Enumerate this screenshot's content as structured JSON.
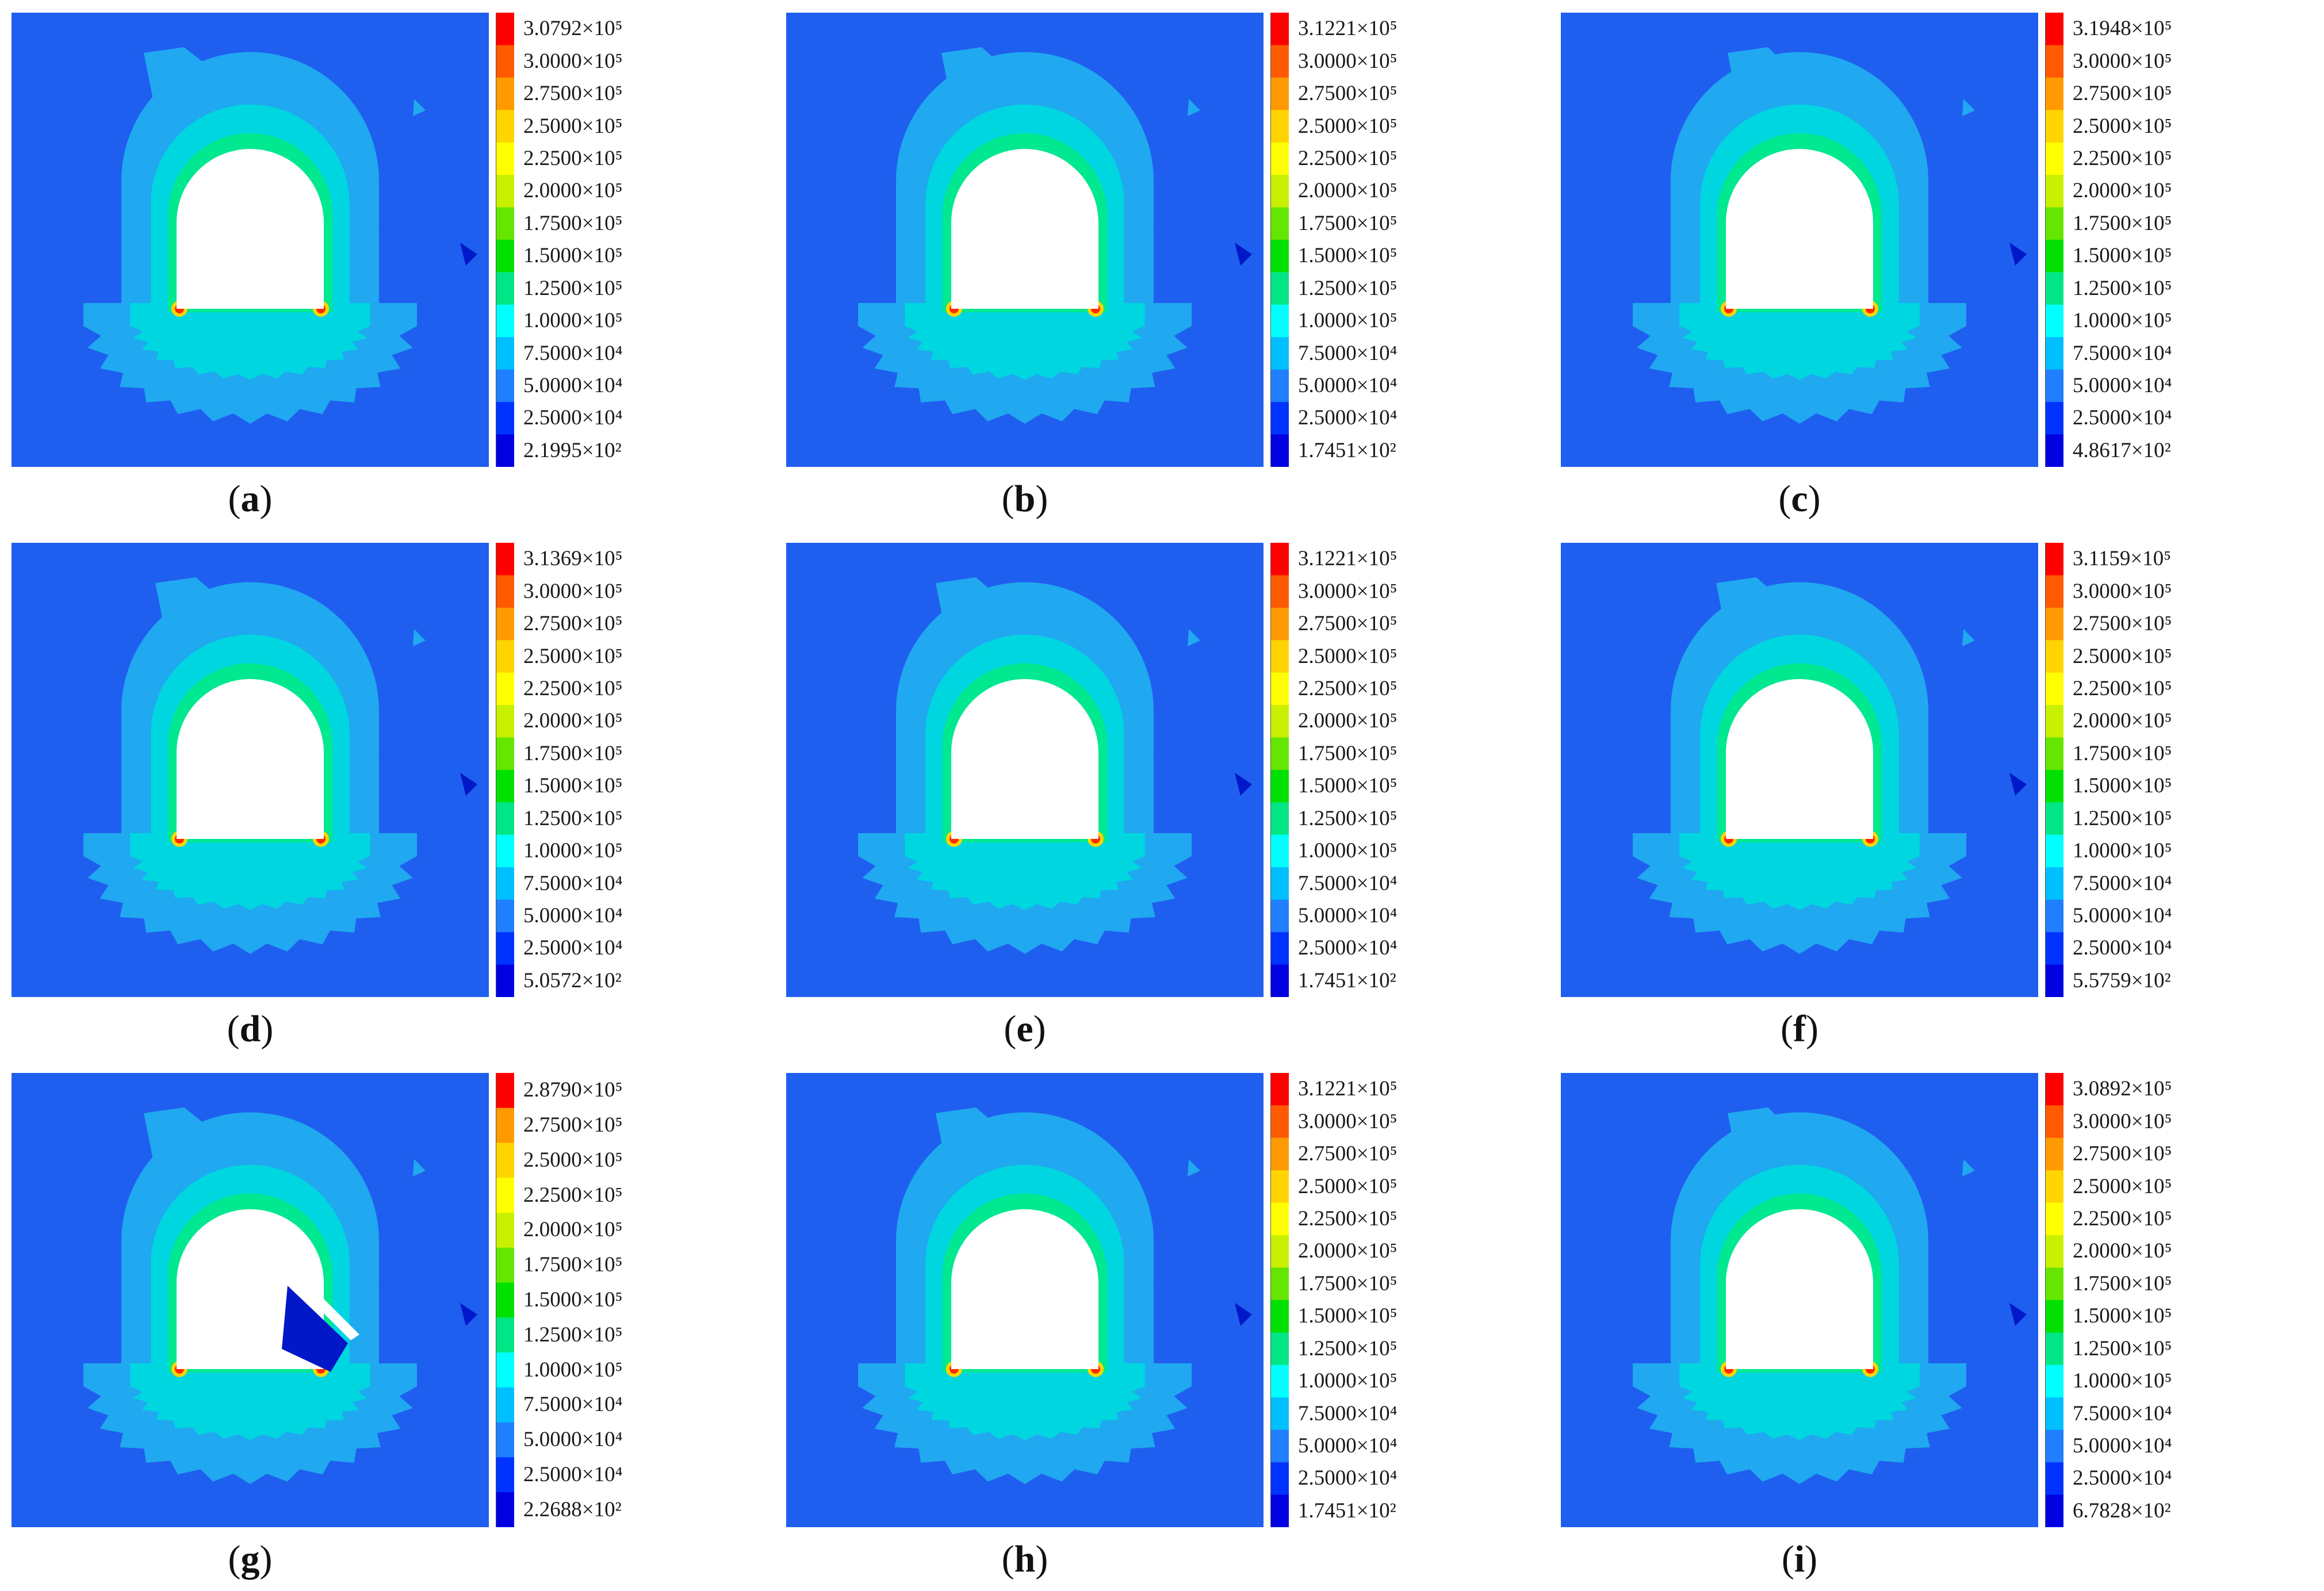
{
  "legend_colors": [
    "#ff0000",
    "#ff5a00",
    "#ff9a00",
    "#ffd400",
    "#ffff00",
    "#c8f000",
    "#64e600",
    "#00e100",
    "#00e687",
    "#00ffff",
    "#00bfff",
    "#1f7fff",
    "#0033ff",
    "#0000e0"
  ],
  "palette": {
    "background": "#1f5fef",
    "ring_light": "#20a8f0",
    "ring_mid": "#00d6e0",
    "crown": "#00e890",
    "hot": "#ff2a00",
    "dark": "#0018c8"
  },
  "panels": [
    {
      "caption": "a",
      "ticks": [
        "3.0792×10⁵",
        "3.0000×10⁵",
        "2.7500×10⁵",
        "2.5000×10⁵",
        "2.2500×10⁵",
        "2.0000×10⁵",
        "1.7500×10⁵",
        "1.5000×10⁵",
        "1.2500×10⁵",
        "1.0000×10⁵",
        "7.5000×10⁴",
        "5.0000×10⁴",
        "2.5000×10⁴",
        "2.1995×10²"
      ]
    },
    {
      "caption": "b",
      "ticks": [
        "3.1221×10⁵",
        "3.0000×10⁵",
        "2.7500×10⁵",
        "2.5000×10⁵",
        "2.2500×10⁵",
        "2.0000×10⁵",
        "1.7500×10⁵",
        "1.5000×10⁵",
        "1.2500×10⁵",
        "1.0000×10⁵",
        "7.5000×10⁴",
        "5.0000×10⁴",
        "2.5000×10⁴",
        "1.7451×10²"
      ]
    },
    {
      "caption": "c",
      "ticks": [
        "3.1948×10⁵",
        "3.0000×10⁵",
        "2.7500×10⁵",
        "2.5000×10⁵",
        "2.2500×10⁵",
        "2.0000×10⁵",
        "1.7500×10⁵",
        "1.5000×10⁵",
        "1.2500×10⁵",
        "1.0000×10⁵",
        "7.5000×10⁴",
        "5.0000×10⁴",
        "2.5000×10⁴",
        "4.8617×10²"
      ]
    },
    {
      "caption": "d",
      "ticks": [
        "3.1369×10⁵",
        "3.0000×10⁵",
        "2.7500×10⁵",
        "2.5000×10⁵",
        "2.2500×10⁵",
        "2.0000×10⁵",
        "1.7500×10⁵",
        "1.5000×10⁵",
        "1.2500×10⁵",
        "1.0000×10⁵",
        "7.5000×10⁴",
        "5.0000×10⁴",
        "2.5000×10⁴",
        "5.0572×10²"
      ]
    },
    {
      "caption": "e",
      "ticks": [
        "3.1221×10⁵",
        "3.0000×10⁵",
        "2.7500×10⁵",
        "2.5000×10⁵",
        "2.2500×10⁵",
        "2.0000×10⁵",
        "1.7500×10⁵",
        "1.5000×10⁵",
        "1.2500×10⁵",
        "1.0000×10⁵",
        "7.5000×10⁴",
        "5.0000×10⁴",
        "2.5000×10⁴",
        "1.7451×10²"
      ]
    },
    {
      "caption": "f",
      "ticks": [
        "3.1159×10⁵",
        "3.0000×10⁵",
        "2.7500×10⁵",
        "2.5000×10⁵",
        "2.2500×10⁵",
        "2.0000×10⁵",
        "1.7500×10⁵",
        "1.5000×10⁵",
        "1.2500×10⁵",
        "1.0000×10⁵",
        "7.5000×10⁴",
        "5.0000×10⁴",
        "2.5000×10⁴",
        "5.5759×10²"
      ]
    },
    {
      "caption": "g",
      "ticks": [
        "2.8790×10⁵",
        "2.7500×10⁵",
        "2.5000×10⁵",
        "2.2500×10⁵",
        "2.0000×10⁵",
        "1.7500×10⁵",
        "1.5000×10⁵",
        "1.2500×10⁵",
        "1.0000×10⁵",
        "7.5000×10⁴",
        "5.0000×10⁴",
        "2.5000×10⁴",
        "2.2688×10²"
      ]
    },
    {
      "caption": "h",
      "ticks": [
        "3.1221×10⁵",
        "3.0000×10⁵",
        "2.7500×10⁵",
        "2.5000×10⁵",
        "2.2500×10⁵",
        "2.0000×10⁵",
        "1.7500×10⁵",
        "1.5000×10⁵",
        "1.2500×10⁵",
        "1.0000×10⁵",
        "7.5000×10⁴",
        "5.0000×10⁴",
        "2.5000×10⁴",
        "1.7451×10²"
      ]
    },
    {
      "caption": "i",
      "ticks": [
        "3.0892×10⁵",
        "3.0000×10⁵",
        "2.7500×10⁵",
        "2.5000×10⁵",
        "2.2500×10⁵",
        "2.0000×10⁵",
        "1.7500×10⁵",
        "1.5000×10⁵",
        "1.2500×10⁵",
        "1.0000×10⁵",
        "7.5000×10⁴",
        "5.0000×10⁴",
        "2.5000×10⁴",
        "6.7828×10²"
      ]
    }
  ]
}
